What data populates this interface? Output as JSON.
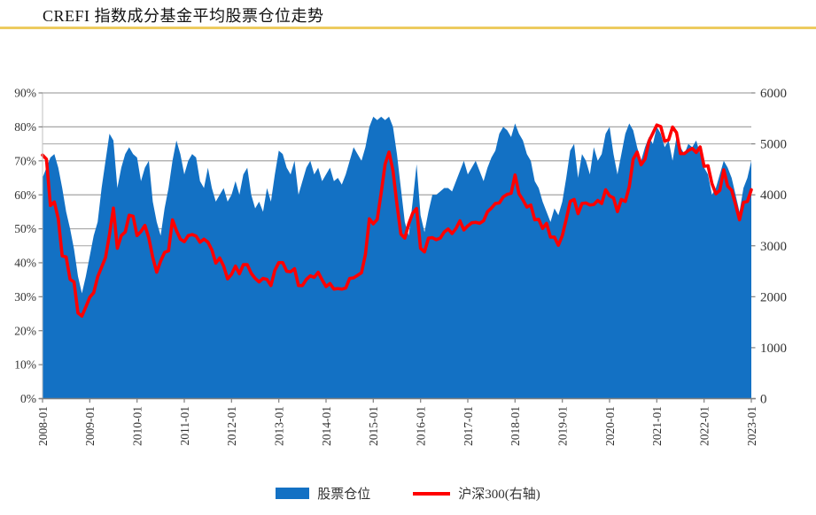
{
  "page": {
    "title": "CREFI 指数成分基金平均股票仓位走势",
    "divider_color": "#EDCB5F"
  },
  "chart_data": {
    "type": "area+line combo",
    "title": "CREFI 指数成分基金平均股票仓位走势",
    "x_axis": {
      "start": "2008-01",
      "end": "2023-01",
      "frequency": "monthly",
      "tick_labels": [
        "2008-01",
        "2009-01",
        "2010-01",
        "2011-01",
        "2012-01",
        "2013-01",
        "2014-01",
        "2015-01",
        "2016-01",
        "2017-01",
        "2018-01",
        "2019-01",
        "2020-01",
        "2021-01",
        "2022-01",
        "2023-01"
      ],
      "points_per_tick": 12
    },
    "left_axis": {
      "min": 0,
      "max": 90,
      "step": 10,
      "format": "percent",
      "tick_labels": [
        "0%",
        "10%",
        "20%",
        "30%",
        "40%",
        "50%",
        "60%",
        "70%",
        "80%",
        "90%"
      ]
    },
    "right_axis": {
      "min": 0,
      "max": 6000,
      "step": 1000,
      "tick_labels": [
        "0",
        "1000",
        "2000",
        "3000",
        "4000",
        "5000",
        "6000"
      ]
    },
    "grid": true,
    "legend_position": "bottom-center",
    "style": {
      "area_color": "#1371C4",
      "line_color": "#FF0000",
      "grid_color": "#A6A6A6",
      "axis_color": "#808080",
      "tick_text_color": "#333333"
    },
    "legend": [
      {
        "label": "股票仓位",
        "marker": "rect",
        "color": "#1371C4"
      },
      {
        "label": "沪深300(右轴)",
        "marker": "line",
        "color": "#FF0000"
      }
    ],
    "series": [
      {
        "name": "股票仓位",
        "type": "area",
        "axis": "left",
        "unit": "%",
        "color": "#1371C4",
        "values": [
          65,
          68,
          71,
          72,
          68,
          62,
          55,
          50,
          44,
          36,
          31,
          36,
          42,
          48,
          52,
          62,
          70,
          78,
          76,
          62,
          68,
          72,
          74,
          72,
          71,
          64,
          68,
          70,
          58,
          52,
          48,
          56,
          62,
          70,
          76,
          72,
          66,
          70,
          72,
          71,
          64,
          62,
          68,
          62,
          58,
          60,
          62,
          58,
          60,
          64,
          60,
          66,
          68,
          60,
          56,
          58,
          55,
          62,
          58,
          66,
          73,
          72,
          68,
          66,
          70,
          60,
          64,
          68,
          70,
          66,
          68,
          64,
          66,
          68,
          64,
          65,
          63,
          66,
          70,
          74,
          72,
          70,
          74,
          80,
          83,
          82,
          83,
          82,
          83,
          80,
          72,
          62,
          52,
          48,
          58,
          69,
          54,
          49,
          55,
          60,
          60,
          61,
          62,
          62,
          61,
          64,
          67,
          70,
          66,
          68,
          70,
          67,
          64,
          68,
          71,
          73,
          78,
          80,
          79,
          77,
          81,
          78,
          76,
          72,
          70,
          64,
          62,
          58,
          55,
          52,
          56,
          54,
          58,
          65,
          73,
          75,
          65,
          72,
          70,
          66,
          74,
          70,
          72,
          78,
          80,
          72,
          66,
          72,
          78,
          81,
          79,
          74,
          70,
          74,
          77,
          75,
          80,
          78,
          74,
          76,
          70,
          77,
          74,
          72,
          75,
          74,
          76,
          72,
          68,
          66,
          60,
          62,
          66,
          70,
          68,
          65,
          60,
          55,
          62,
          65,
          70
        ]
      },
      {
        "name": "沪深300(右轴)",
        "type": "line",
        "axis": "right",
        "unit": "points",
        "color": "#FF0000",
        "values": [
          4780,
          4700,
          3790,
          3860,
          3530,
          2800,
          2780,
          2340,
          2290,
          1680,
          1620,
          1800,
          1990,
          2080,
          2390,
          2580,
          2770,
          3220,
          3740,
          2950,
          3200,
          3270,
          3600,
          3580,
          3200,
          3280,
          3400,
          3150,
          2770,
          2480,
          2700,
          2870,
          2900,
          3510,
          3300,
          3130,
          3080,
          3200,
          3220,
          3190,
          3070,
          3130,
          3070,
          2920,
          2660,
          2760,
          2600,
          2350,
          2440,
          2600,
          2450,
          2630,
          2630,
          2460,
          2360,
          2290,
          2360,
          2340,
          2220,
          2520,
          2670,
          2670,
          2500,
          2490,
          2550,
          2220,
          2220,
          2340,
          2410,
          2380,
          2480,
          2330,
          2200,
          2260,
          2150,
          2160,
          2150,
          2170,
          2360,
          2370,
          2420,
          2470,
          2830,
          3530,
          3430,
          3520,
          4040,
          4600,
          4840,
          4470,
          3820,
          3230,
          3150,
          3430,
          3640,
          3730,
          2950,
          2880,
          3150,
          3160,
          3120,
          3150,
          3270,
          3330,
          3240,
          3340,
          3490,
          3310,
          3390,
          3450,
          3460,
          3440,
          3490,
          3670,
          3740,
          3830,
          3840,
          3960,
          4010,
          4030,
          4390,
          4020,
          3900,
          3760,
          3800,
          3510,
          3520,
          3340,
          3440,
          3170,
          3170,
          3010,
          3200,
          3520,
          3870,
          3910,
          3630,
          3830,
          3840,
          3800,
          3810,
          3890,
          3830,
          4100,
          3980,
          3940,
          3670,
          3910,
          3870,
          4160,
          4700,
          4840,
          4590,
          4700,
          5050,
          5210,
          5370,
          5340,
          5050,
          5080,
          5330,
          5220,
          4810,
          4810,
          4870,
          4910,
          4830,
          4940,
          4560,
          4570,
          4220,
          4020,
          4090,
          4490,
          4170,
          4090,
          3810,
          3510,
          3850,
          3870,
          4100
        ]
      }
    ]
  }
}
